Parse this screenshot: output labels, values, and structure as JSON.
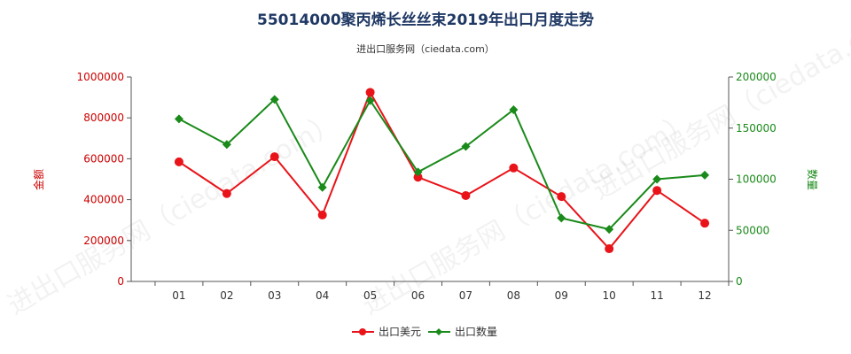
{
  "title": "55014000聚丙烯长丝丝束2019年出口月度走势",
  "subtitle": "进出口服务网（ciedata.com）",
  "watermark": "进出口服务网（ciedata.com）",
  "colors": {
    "usd": "#e8141a",
    "qty": "#1a8a1a",
    "axis_left": "#cc0000",
    "axis_right": "#1a8a1a"
  },
  "chart_data": {
    "type": "line",
    "categories": [
      "01",
      "02",
      "03",
      "04",
      "05",
      "06",
      "07",
      "08",
      "09",
      "10",
      "11",
      "12"
    ],
    "series": [
      {
        "name": "出口美元",
        "axis": "left",
        "values": [
          585000,
          430000,
          610000,
          325000,
          925000,
          510000,
          420000,
          555000,
          415000,
          160000,
          445000,
          285000
        ]
      },
      {
        "name": "出口数量",
        "axis": "right",
        "values": [
          159000,
          134000,
          178000,
          92000,
          177000,
          107000,
          132000,
          168000,
          62000,
          51000,
          100000,
          104000
        ]
      }
    ],
    "ylabel_left": "金额",
    "ylabel_right": "数量",
    "ylim_left": [
      0,
      1000000
    ],
    "ylim_right": [
      0,
      200000
    ],
    "yticks_left": [
      "0",
      "200000",
      "400000",
      "600000",
      "800000",
      "1000000"
    ],
    "yticks_right": [
      "0",
      "50000",
      "100000",
      "150000",
      "200000"
    ],
    "grid": false,
    "legend": "bottom-center"
  }
}
